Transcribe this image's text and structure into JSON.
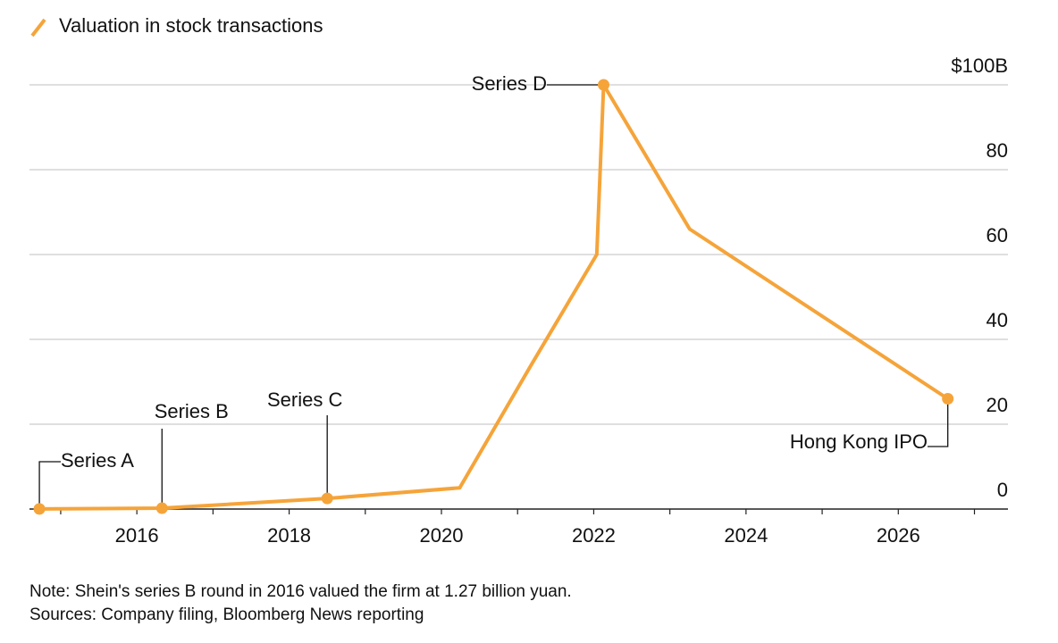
{
  "chart_data": {
    "type": "line",
    "x": [
      2014.72,
      2016.33,
      2018.5,
      2020.24,
      2021.18,
      2022.04,
      2022.13,
      2023.26,
      2026.65
    ],
    "series": [
      {
        "name": "Valuation in stock transactions",
        "color": "#f5a43a",
        "values": [
          0.03,
          0.2,
          2.5,
          5,
          34,
          60,
          100,
          66,
          26
        ]
      }
    ],
    "point_labels": [
      "Series A",
      "Series B",
      "Series C",
      null,
      null,
      null,
      "Series D",
      null,
      "Hong Kong IPO"
    ],
    "xlim": [
      2014.59,
      2027.44
    ],
    "xticks": [
      2016,
      2018,
      2020,
      2022,
      2024,
      2026
    ],
    "xminor_ticks": [
      2015,
      2016,
      2017,
      2018,
      2019,
      2020,
      2021,
      2022,
      2023,
      2024,
      2025,
      2026,
      2027
    ],
    "ylim": [
      0,
      100
    ],
    "yticks": [
      0,
      20,
      40,
      60,
      80,
      {
        "value": 100,
        "label": "$100B"
      }
    ],
    "grid": true,
    "note": "Note: Shein's series B round in 2016 valued the firm at 1.27 billion yuan.",
    "source": "Sources: Company filing, Bloomberg News reporting"
  }
}
